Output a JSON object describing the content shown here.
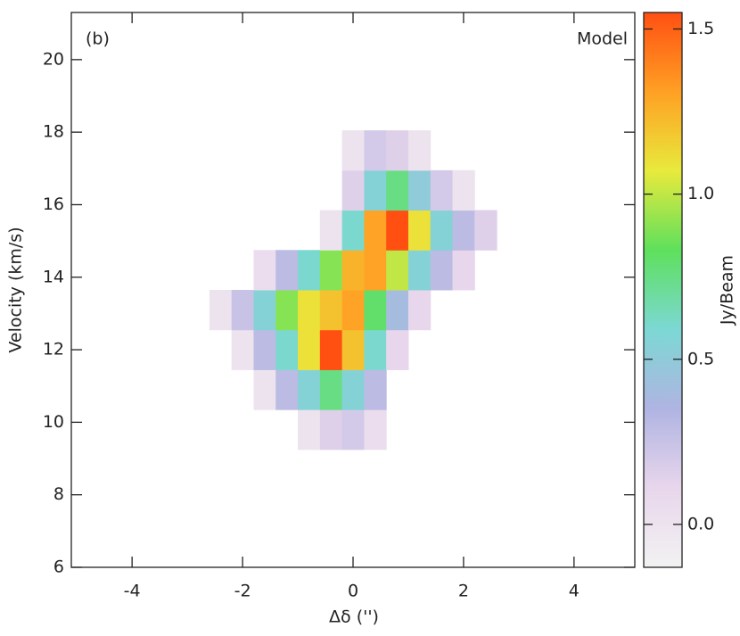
{
  "chart_data": {
    "type": "heatmap",
    "panel_label": "(b)",
    "annotation": "Model",
    "xlabel": "Δδ ('')",
    "ylabel": "Velocity (km/s)",
    "colorbar_label": "Jy/Beam",
    "x": [
      -2.4,
      -2.0,
      -1.6,
      -1.2,
      -0.8,
      -0.4,
      0,
      0.4,
      0.8,
      1.2,
      1.6,
      2.0,
      2.4
    ],
    "y": [
      9.8,
      10.9,
      12.0,
      13.1,
      14.2,
      15.3,
      16.4,
      17.5
    ],
    "z": [
      [
        null,
        null,
        null,
        null,
        0.0,
        0.15,
        0.2,
        0.05,
        null,
        null,
        null,
        null,
        null
      ],
      [
        null,
        null,
        0.0,
        0.3,
        0.55,
        0.75,
        0.55,
        0.3,
        null,
        null,
        null,
        null,
        null
      ],
      [
        null,
        0.0,
        0.3,
        0.6,
        1.1,
        1.55,
        1.2,
        0.6,
        0.1,
        null,
        null,
        null,
        null
      ],
      [
        0.0,
        0.25,
        0.55,
        0.9,
        1.1,
        1.2,
        1.3,
        0.8,
        0.4,
        0.1,
        null,
        null,
        null
      ],
      [
        null,
        null,
        0.05,
        0.3,
        0.6,
        0.9,
        1.25,
        1.3,
        1.0,
        0.55,
        0.3,
        0.1,
        null
      ],
      [
        null,
        null,
        null,
        null,
        null,
        0.0,
        0.6,
        1.3,
        1.55,
        1.1,
        0.55,
        0.3,
        0.15
      ],
      [
        null,
        null,
        null,
        null,
        null,
        null,
        0.15,
        0.55,
        0.75,
        0.5,
        0.2,
        0.0,
        null
      ],
      [
        null,
        null,
        null,
        null,
        null,
        null,
        0.0,
        0.2,
        0.15,
        0.0,
        null,
        null,
        null
      ]
    ],
    "xlim": [
      -5.1,
      5.1
    ],
    "xticks": [
      -4,
      -2,
      0,
      2,
      4
    ],
    "ylim": [
      6,
      21.3
    ],
    "yticks": [
      6,
      8,
      10,
      12,
      14,
      16,
      18,
      20
    ],
    "clim": [
      -0.13,
      1.55
    ],
    "cticks": [
      {
        "value": 0,
        "label": "0.0"
      },
      0.5,
      {
        "value": 1,
        "label": "1.0"
      },
      1.5
    ],
    "colors": [
      "#f2f2f2",
      "#e8d6ec",
      "#b0b4e2",
      "#7cd8d4",
      "#5ee05c",
      "#e8ea3c",
      "#ffa024",
      "#ff5012"
    ]
  }
}
